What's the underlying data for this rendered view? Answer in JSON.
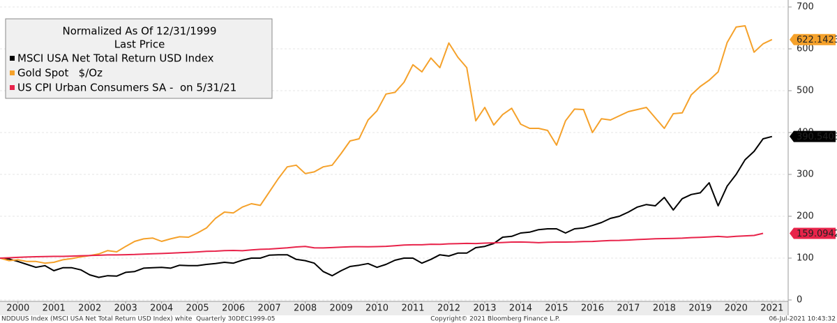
{
  "chart_data": {
    "type": "line",
    "title": "Normalized As Of 12/31/1999",
    "subtitle": "Last Price",
    "x": [
      2000,
      2000.25,
      2000.5,
      2000.75,
      2001,
      2001.25,
      2001.5,
      2001.75,
      2002,
      2002.25,
      2002.5,
      2002.75,
      2003,
      2003.25,
      2003.5,
      2003.75,
      2004,
      2004.25,
      2004.5,
      2004.75,
      2005,
      2005.25,
      2005.5,
      2005.75,
      2006,
      2006.25,
      2006.5,
      2006.75,
      2007,
      2007.25,
      2007.5,
      2007.75,
      2008,
      2008.25,
      2008.5,
      2008.75,
      2009,
      2009.25,
      2009.5,
      2009.75,
      2010,
      2010.25,
      2010.5,
      2010.75,
      2011,
      2011.25,
      2011.5,
      2011.75,
      2012,
      2012.25,
      2012.5,
      2012.75,
      2013,
      2013.25,
      2013.5,
      2013.75,
      2014,
      2014.25,
      2014.5,
      2014.75,
      2015,
      2015.25,
      2015.5,
      2015.75,
      2016,
      2016.25,
      2016.5,
      2016.75,
      2017,
      2017.25,
      2017.5,
      2017.75,
      2018,
      2018.25,
      2018.5,
      2018.75,
      2019,
      2019.25,
      2019.5,
      2019.75,
      2020,
      2020.25,
      2020.5,
      2020.75,
      2021,
      2021.25,
      2021.5
    ],
    "series": [
      {
        "name": "MSCI USA Net Total Return USD Index",
        "color": "#000000",
        "label_text": "#ffffff",
        "values": [
          100,
          98,
          92,
          85,
          78,
          82,
          70,
          77,
          77,
          72,
          60,
          54,
          58,
          57,
          66,
          68,
          76,
          77,
          78,
          76,
          83,
          82,
          82,
          85,
          87,
          90,
          88,
          95,
          100,
          100,
          107,
          108,
          108,
          97,
          94,
          88,
          68,
          58,
          70,
          80,
          83,
          87,
          78,
          85,
          95,
          100,
          100,
          88,
          97,
          108,
          105,
          112,
          112,
          125,
          128,
          135,
          150,
          152,
          160,
          162,
          168,
          170,
          170,
          160,
          170,
          172,
          178,
          185,
          195,
          200,
          210,
          222,
          228,
          225,
          245,
          215,
          242,
          252,
          256,
          280,
          225,
          272,
          300,
          335,
          355,
          385,
          390.5403
        ]
      },
      {
        "name": "Gold Spot   $/Oz",
        "color": "#f5a12a",
        "label_text": "#000000",
        "values": [
          100,
          94,
          96,
          92,
          92,
          88,
          90,
          96,
          99,
          103,
          106,
          110,
          118,
          115,
          128,
          140,
          146,
          148,
          140,
          146,
          151,
          150,
          160,
          172,
          195,
          210,
          208,
          222,
          230,
          226,
          258,
          290,
          318,
          322,
          302,
          306,
          318,
          322,
          350,
          380,
          385,
          430,
          452,
          492,
          496,
          520,
          562,
          545,
          578,
          555,
          614,
          580,
          555,
          428,
          460,
          418,
          443,
          458,
          420,
          410,
          410,
          405,
          370,
          428,
          456,
          455,
          400,
          433,
          430,
          440,
          450,
          455,
          460,
          435,
          410,
          445,
          447,
          490,
          510,
          525,
          545,
          615,
          652,
          655,
          592,
          612,
          622.1423
        ]
      },
      {
        "name": "US CPI Urban Consumers SA -  on 5/31/21",
        "color": "#e8234a",
        "label_text": "#ffffff",
        "values": [
          100,
          100.9,
          101.8,
          102.6,
          103.4,
          103.9,
          104.2,
          104.2,
          104.9,
          105.6,
          106.2,
          106.8,
          107.6,
          107.6,
          108.1,
          108.6,
          109.6,
          110.5,
          111,
          111.8,
          112.9,
          113.6,
          114.8,
          116.4,
          116.7,
          117.8,
          118.4,
          117.7,
          119.7,
          121,
          121.7,
          123.2,
          124.6,
          126.6,
          127.9,
          124.7,
          124.3,
          125.2,
          126.2,
          127.1,
          127.3,
          127.1,
          127.5,
          128.1,
          129.7,
          131.1,
          131.8,
          131.9,
          133.2,
          132.9,
          134.2,
          134.6,
          135.1,
          134.9,
          135.9,
          136.5,
          137.4,
          138.3,
          138.5,
          137.8,
          136.8,
          137.9,
          138.3,
          138.3,
          138.6,
          139.5,
          139.9,
          141.0,
          142.1,
          142.3,
          143.1,
          144.3,
          145.2,
          146.2,
          146.7,
          147.0,
          147.6,
          149.0,
          149.6,
          150.7,
          151.9,
          150.4,
          152.2,
          153.1,
          154.2,
          159.0942,
          null
        ]
      }
    ],
    "xlim": [
      2000,
      2021.95
    ],
    "xticks": [
      {
        "value": 2000.5,
        "label": "2000"
      },
      {
        "value": 2001.5,
        "label": "2001"
      },
      {
        "value": 2002.5,
        "label": "2002"
      },
      {
        "value": 2003.5,
        "label": "2003"
      },
      {
        "value": 2004.5,
        "label": "2004"
      },
      {
        "value": 2005.5,
        "label": "2005"
      },
      {
        "value": 2006.5,
        "label": "2006"
      },
      {
        "value": 2007.5,
        "label": "2007"
      },
      {
        "value": 2008.5,
        "label": "2008"
      },
      {
        "value": 2009.5,
        "label": "2009"
      },
      {
        "value": 2010.5,
        "label": "2010"
      },
      {
        "value": 2011.5,
        "label": "2011"
      },
      {
        "value": 2012.5,
        "label": "2012"
      },
      {
        "value": 2013.5,
        "label": "2013"
      },
      {
        "value": 2014.5,
        "label": "2014"
      },
      {
        "value": 2015.5,
        "label": "2015"
      },
      {
        "value": 2016.5,
        "label": "2016"
      },
      {
        "value": 2017.5,
        "label": "2017"
      },
      {
        "value": 2018.5,
        "label": "2018"
      },
      {
        "value": 2019.5,
        "label": "2019"
      },
      {
        "value": 2020.5,
        "label": "2020"
      },
      {
        "value": 2021.5,
        "label": "2021"
      }
    ],
    "ylim": [
      0,
      700
    ],
    "yticks": [
      0,
      100,
      200,
      300,
      400,
      500,
      600,
      700
    ],
    "grid": true,
    "footer_left": "NDDUUS Index (MSCI USA Net Total Return USD Index) white  Quarterly 30DEC1999-05",
    "footer_center": "Copyright© 2021 Bloomberg Finance L.P.",
    "footer_right": "06-Jul-2021 10:43:32"
  }
}
